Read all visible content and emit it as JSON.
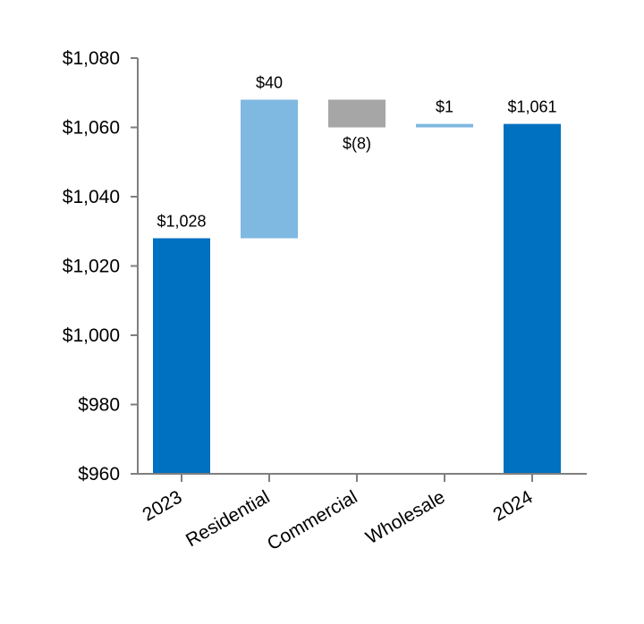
{
  "chart_data": {
    "type": "bar",
    "subtype": "waterfall",
    "title": "",
    "xlabel": "",
    "ylabel": "",
    "ylim": [
      960,
      1080
    ],
    "y_ticks": [
      960,
      980,
      1000,
      1020,
      1040,
      1060,
      1080
    ],
    "y_tick_labels": [
      "$960",
      "$980",
      "$1,000",
      "$1,020",
      "$1,040",
      "$1,060",
      "$1,080"
    ],
    "categories": [
      "2023",
      "Residential",
      "Commercial",
      "Wholesale",
      "2024"
    ],
    "steps": [
      {
        "category": "2023",
        "kind": "total",
        "value": 1028,
        "label": "$1,028",
        "color": "#0070c0"
      },
      {
        "category": "Residential",
        "kind": "delta",
        "value": 40,
        "label": "$40",
        "color": "#7fb8e1"
      },
      {
        "category": "Commercial",
        "kind": "delta",
        "value": -8,
        "label": "$(8)",
        "color": "#a6a6a6"
      },
      {
        "category": "Wholesale",
        "kind": "delta",
        "value": 1,
        "label": "$1",
        "color": "#7fb8e1"
      },
      {
        "category": "2024",
        "kind": "total",
        "value": 1061,
        "label": "$1,061",
        "color": "#0070c0"
      }
    ],
    "grid": false,
    "legend": "none",
    "axis_color": "#7f7f7f"
  }
}
